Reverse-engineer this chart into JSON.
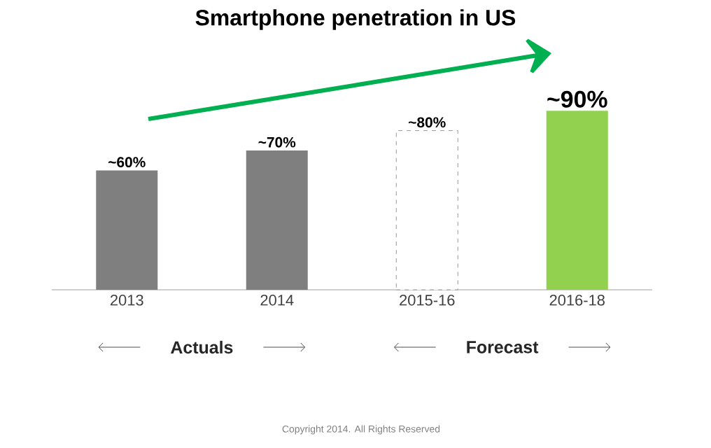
{
  "chart_data": {
    "type": "bar",
    "title": "Smartphone penetration in US",
    "categories": [
      "2013",
      "2014",
      "2015-16",
      "2016-18"
    ],
    "values": [
      60,
      70,
      80,
      90
    ],
    "colors": [
      "#7f7f7f",
      "#7f7f7f",
      "#ffffff",
      "#92d050"
    ],
    "value_labels": [
      "~60%",
      "~70%",
      "~80%",
      "~90%"
    ],
    "tick_labels": "x",
    "grid": false,
    "annotations": [
      "Actuals",
      "Forecast",
      "Copyright 2014. All Rights Reserved"
    ]
  }
}
